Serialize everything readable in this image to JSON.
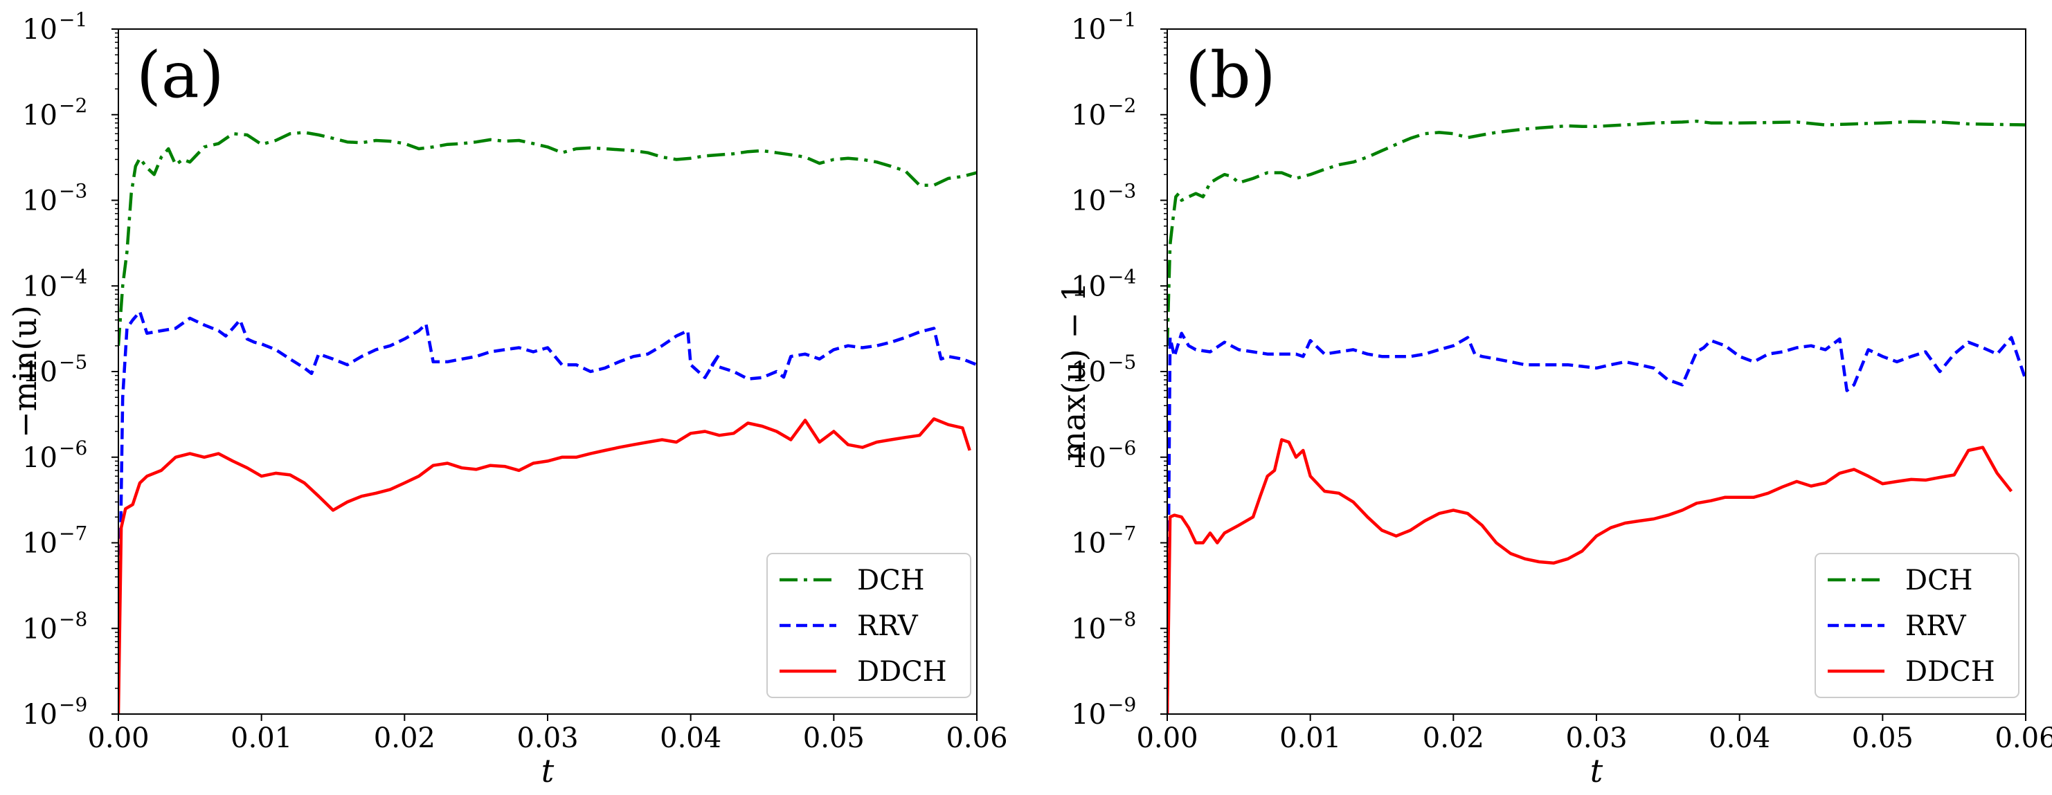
{
  "chart_data": [
    {
      "type": "line",
      "panel_label": "(a)",
      "xlabel": "t",
      "ylabel": "−min(u)",
      "xlim": [
        0.0,
        0.06
      ],
      "ylim": [
        1e-09,
        0.1
      ],
      "yscale": "log",
      "x_ticks": [
        "0.00",
        "0.01",
        "0.02",
        "0.03",
        "0.04",
        "0.05",
        "0.06"
      ],
      "y_ticks": [
        {
          "base": "10",
          "exp": "−9"
        },
        {
          "base": "10",
          "exp": "−8"
        },
        {
          "base": "10",
          "exp": "−7"
        },
        {
          "base": "10",
          "exp": "−6"
        },
        {
          "base": "10",
          "exp": "−5"
        },
        {
          "base": "10",
          "exp": "−4"
        },
        {
          "base": "10",
          "exp": "−3"
        },
        {
          "base": "10",
          "exp": "−2"
        },
        {
          "base": "10",
          "exp": "−1"
        }
      ],
      "legend_position": "lower-right",
      "series": [
        {
          "name": "DCH",
          "color": "#008000",
          "style": "dashdot",
          "x": [
            0.0,
            0.0003,
            0.0006,
            0.0009,
            0.0012,
            0.0015,
            0.002,
            0.0025,
            0.003,
            0.0035,
            0.004,
            0.0045,
            0.005,
            0.006,
            0.007,
            0.008,
            0.009,
            0.01,
            0.011,
            0.012,
            0.013,
            0.014,
            0.015,
            0.016,
            0.017,
            0.018,
            0.019,
            0.02,
            0.021,
            0.022,
            0.023,
            0.024,
            0.025,
            0.026,
            0.027,
            0.028,
            0.029,
            0.03,
            0.031,
            0.032,
            0.033,
            0.034,
            0.035,
            0.036,
            0.037,
            0.038,
            0.039,
            0.04,
            0.041,
            0.042,
            0.043,
            0.044,
            0.045,
            0.046,
            0.047,
            0.048,
            0.049,
            0.05,
            0.051,
            0.052,
            0.053,
            0.054,
            0.055,
            0.056,
            0.057,
            0.058,
            0.059,
            0.06
          ],
          "y": [
            2e-05,
            0.0001,
            0.00025,
            0.0012,
            0.0025,
            0.0031,
            0.0024,
            0.002,
            0.0032,
            0.004,
            0.0026,
            0.003,
            0.0028,
            0.0042,
            0.0046,
            0.006,
            0.0058,
            0.0045,
            0.005,
            0.006,
            0.0062,
            0.0058,
            0.0053,
            0.0048,
            0.0047,
            0.005,
            0.0049,
            0.0046,
            0.004,
            0.0042,
            0.0045,
            0.0046,
            0.0048,
            0.0051,
            0.0049,
            0.005,
            0.0046,
            0.0042,
            0.0036,
            0.004,
            0.0041,
            0.004,
            0.0039,
            0.0038,
            0.0036,
            0.0032,
            0.003,
            0.0031,
            0.0033,
            0.0034,
            0.0035,
            0.0037,
            0.0038,
            0.0036,
            0.0034,
            0.0032,
            0.0027,
            0.003,
            0.0031,
            0.003,
            0.0028,
            0.0025,
            0.0022,
            0.0015,
            0.0015,
            0.0018,
            0.0019,
            0.0021
          ]
        },
        {
          "name": "RRV",
          "color": "#0000ff",
          "style": "dashed",
          "x": [
            0.0,
            0.0003,
            0.0006,
            0.001,
            0.0015,
            0.002,
            0.003,
            0.004,
            0.005,
            0.006,
            0.007,
            0.0075,
            0.008,
            0.0085,
            0.009,
            0.0095,
            0.01,
            0.011,
            0.012,
            0.013,
            0.0135,
            0.014,
            0.0145,
            0.015,
            0.016,
            0.017,
            0.018,
            0.019,
            0.02,
            0.021,
            0.0215,
            0.022,
            0.023,
            0.024,
            0.025,
            0.026,
            0.027,
            0.028,
            0.029,
            0.03,
            0.031,
            0.032,
            0.033,
            0.034,
            0.035,
            0.036,
            0.037,
            0.038,
            0.039,
            0.0398,
            0.04,
            0.041,
            0.042,
            0.0415,
            0.043,
            0.044,
            0.045,
            0.046,
            0.0465,
            0.047,
            0.048,
            0.049,
            0.05,
            0.051,
            0.052,
            0.053,
            0.054,
            0.055,
            0.056,
            0.057,
            0.0575,
            0.058,
            0.059,
            0.06
          ],
          "y": [
            2e-09,
            5e-06,
            3.2e-05,
            4e-05,
            5e-05,
            2.8e-05,
            3e-05,
            3.2e-05,
            4.2e-05,
            3.5e-05,
            3e-05,
            2.6e-05,
            3.2e-05,
            4e-05,
            2.4e-05,
            2.2e-05,
            2.1e-05,
            1.8e-05,
            1.4e-05,
            1.1e-05,
            9.5e-06,
            1.6e-05,
            1.5e-05,
            1.4e-05,
            1.2e-05,
            1.5e-05,
            1.8e-05,
            2e-05,
            2.4e-05,
            3e-05,
            3.6e-05,
            1.3e-05,
            1.3e-05,
            1.4e-05,
            1.5e-05,
            1.7e-05,
            1.8e-05,
            1.9e-05,
            1.7e-05,
            1.9e-05,
            1.2e-05,
            1.2e-05,
            1e-05,
            1.1e-05,
            1.3e-05,
            1.5e-05,
            1.6e-05,
            2e-05,
            2.6e-05,
            3e-05,
            1.2e-05,
            8.5e-06,
            1.6e-05,
            1.2e-05,
            1e-05,
            8.2e-06,
            8.5e-06,
            1e-05,
            8.6e-06,
            1.5e-05,
            1.6e-05,
            1.4e-05,
            1.8e-05,
            2e-05,
            1.9e-05,
            2e-05,
            2.2e-05,
            2.5e-05,
            2.9e-05,
            3.2e-05,
            1.4e-05,
            1.5e-05,
            1.4e-05,
            1.2e-05
          ]
        },
        {
          "name": "DDCH",
          "color": "#ff0000",
          "style": "solid",
          "x": [
            0.0,
            0.0002,
            0.0005,
            0.001,
            0.0015,
            0.002,
            0.003,
            0.004,
            0.005,
            0.006,
            0.007,
            0.008,
            0.009,
            0.01,
            0.011,
            0.012,
            0.013,
            0.014,
            0.015,
            0.016,
            0.017,
            0.018,
            0.019,
            0.02,
            0.021,
            0.022,
            0.023,
            0.024,
            0.025,
            0.026,
            0.027,
            0.028,
            0.029,
            0.03,
            0.031,
            0.032,
            0.033,
            0.034,
            0.035,
            0.036,
            0.037,
            0.038,
            0.039,
            0.04,
            0.041,
            0.042,
            0.043,
            0.044,
            0.045,
            0.046,
            0.047,
            0.048,
            0.049,
            0.05,
            0.051,
            0.052,
            0.053,
            0.054,
            0.055,
            0.056,
            0.057,
            0.058,
            0.059,
            0.0595
          ],
          "y": [
            1e-09,
            1.5e-07,
            2.5e-07,
            2.8e-07,
            5e-07,
            6e-07,
            7e-07,
            1e-06,
            1.1e-06,
            1e-06,
            1.1e-06,
            9e-07,
            7.5e-07,
            6e-07,
            6.5e-07,
            6.2e-07,
            5e-07,
            3.5e-07,
            2.4e-07,
            3e-07,
            3.5e-07,
            3.8e-07,
            4.2e-07,
            5e-07,
            6e-07,
            8e-07,
            8.5e-07,
            7.5e-07,
            7.2e-07,
            8e-07,
            7.8e-07,
            7e-07,
            8.5e-07,
            9e-07,
            1e-06,
            1e-06,
            1.1e-06,
            1.2e-06,
            1.3e-06,
            1.4e-06,
            1.5e-06,
            1.6e-06,
            1.5e-06,
            1.9e-06,
            2e-06,
            1.8e-06,
            1.9e-06,
            2.5e-06,
            2.3e-06,
            2e-06,
            1.6e-06,
            2.7e-06,
            1.5e-06,
            2e-06,
            1.4e-06,
            1.3e-06,
            1.5e-06,
            1.6e-06,
            1.7e-06,
            1.8e-06,
            2.8e-06,
            2.4e-06,
            2.2e-06,
            1.2e-06
          ]
        }
      ]
    },
    {
      "type": "line",
      "panel_label": "(b)",
      "xlabel": "t",
      "ylabel": "max(u) − 1",
      "xlim": [
        0.0,
        0.06
      ],
      "ylim": [
        1e-09,
        0.1
      ],
      "yscale": "log",
      "x_ticks": [
        "0.00",
        "0.01",
        "0.02",
        "0.03",
        "0.04",
        "0.05",
        "0.06"
      ],
      "y_ticks": [
        {
          "base": "10",
          "exp": "−9"
        },
        {
          "base": "10",
          "exp": "−8"
        },
        {
          "base": "10",
          "exp": "−7"
        },
        {
          "base": "10",
          "exp": "−6"
        },
        {
          "base": "10",
          "exp": "−5"
        },
        {
          "base": "10",
          "exp": "−4"
        },
        {
          "base": "10",
          "exp": "−3"
        },
        {
          "base": "10",
          "exp": "−2"
        },
        {
          "base": "10",
          "exp": "−1"
        }
      ],
      "legend_position": "lower-right",
      "series": [
        {
          "name": "DCH",
          "color": "#008000",
          "style": "dashdot",
          "x": [
            0.0,
            0.0002,
            0.0004,
            0.0006,
            0.0008,
            0.001,
            0.0015,
            0.002,
            0.0025,
            0.003,
            0.0035,
            0.004,
            0.0045,
            0.005,
            0.006,
            0.007,
            0.008,
            0.009,
            0.01,
            0.011,
            0.012,
            0.013,
            0.014,
            0.015,
            0.016,
            0.017,
            0.018,
            0.019,
            0.02,
            0.021,
            0.022,
            0.023,
            0.024,
            0.025,
            0.026,
            0.027,
            0.028,
            0.029,
            0.03,
            0.032,
            0.034,
            0.036,
            0.037,
            0.038,
            0.04,
            0.042,
            0.044,
            0.046,
            0.048,
            0.05,
            0.052,
            0.054,
            0.056,
            0.058,
            0.06
          ],
          "y": [
            2e-05,
            0.0003,
            0.0006,
            0.0011,
            0.0012,
            0.001,
            0.0011,
            0.0012,
            0.0011,
            0.0016,
            0.0018,
            0.002,
            0.0019,
            0.0016,
            0.0018,
            0.0021,
            0.0021,
            0.0018,
            0.002,
            0.0023,
            0.0026,
            0.0028,
            0.0032,
            0.0038,
            0.0045,
            0.0053,
            0.006,
            0.0062,
            0.006,
            0.0054,
            0.0058,
            0.0062,
            0.0065,
            0.0068,
            0.007,
            0.0072,
            0.0074,
            0.0073,
            0.0073,
            0.0076,
            0.008,
            0.0082,
            0.0084,
            0.008,
            0.008,
            0.0081,
            0.0082,
            0.0076,
            0.0078,
            0.008,
            0.0083,
            0.0082,
            0.0078,
            0.0077,
            0.0076
          ]
        },
        {
          "name": "RRV",
          "color": "#0000ff",
          "style": "dashed",
          "x": [
            0.0,
            0.0002,
            0.0005,
            0.001,
            0.0015,
            0.002,
            0.003,
            0.004,
            0.005,
            0.006,
            0.007,
            0.008,
            0.009,
            0.0095,
            0.01,
            0.011,
            0.012,
            0.013,
            0.014,
            0.015,
            0.016,
            0.017,
            0.018,
            0.019,
            0.02,
            0.021,
            0.0215,
            0.022,
            0.023,
            0.024,
            0.025,
            0.026,
            0.027,
            0.028,
            0.029,
            0.03,
            0.031,
            0.032,
            0.033,
            0.034,
            0.035,
            0.036,
            0.037,
            0.0375,
            0.038,
            0.039,
            0.04,
            0.041,
            0.042,
            0.043,
            0.044,
            0.045,
            0.046,
            0.047,
            0.0475,
            0.048,
            0.049,
            0.05,
            0.051,
            0.052,
            0.053,
            0.054,
            0.055,
            0.056,
            0.057,
            0.058,
            0.059,
            0.06
          ],
          "y": [
            1e-09,
            2.5e-05,
            1.5e-05,
            2.8e-05,
            2e-05,
            1.8e-05,
            1.7e-05,
            2.2e-05,
            1.8e-05,
            1.7e-05,
            1.6e-05,
            1.6e-05,
            1.6e-05,
            1.5e-05,
            2.3e-05,
            1.6e-05,
            1.7e-05,
            1.8e-05,
            1.6e-05,
            1.5e-05,
            1.5e-05,
            1.5e-05,
            1.6e-05,
            1.8e-05,
            2e-05,
            2.5e-05,
            1.6e-05,
            1.5e-05,
            1.4e-05,
            1.3e-05,
            1.2e-05,
            1.2e-05,
            1.2e-05,
            1.2e-05,
            1.15e-05,
            1.1e-05,
            1.2e-05,
            1.3e-05,
            1.2e-05,
            1.1e-05,
            8e-06,
            7e-06,
            1.7e-05,
            1.9e-05,
            2.3e-05,
            2e-05,
            1.5e-05,
            1.3e-05,
            1.6e-05,
            1.7e-05,
            1.9e-05,
            2e-05,
            1.8e-05,
            2.4e-05,
            6e-06,
            7e-06,
            1.8e-05,
            1.5e-05,
            1.3e-05,
            1.5e-05,
            1.7e-05,
            1e-05,
            1.6e-05,
            2.2e-05,
            1.9e-05,
            1.6e-05,
            2.5e-05,
            8e-06
          ]
        },
        {
          "name": "DDCH",
          "color": "#ff0000",
          "style": "solid",
          "x": [
            0.0,
            0.0002,
            0.0005,
            0.001,
            0.0015,
            0.002,
            0.0025,
            0.003,
            0.0035,
            0.004,
            0.005,
            0.006,
            0.0065,
            0.007,
            0.0075,
            0.008,
            0.0085,
            0.009,
            0.0095,
            0.01,
            0.011,
            0.012,
            0.013,
            0.014,
            0.015,
            0.016,
            0.017,
            0.018,
            0.019,
            0.02,
            0.021,
            0.022,
            0.023,
            0.024,
            0.025,
            0.026,
            0.027,
            0.028,
            0.029,
            0.03,
            0.031,
            0.032,
            0.033,
            0.034,
            0.035,
            0.036,
            0.037,
            0.038,
            0.039,
            0.04,
            0.041,
            0.042,
            0.043,
            0.044,
            0.045,
            0.046,
            0.047,
            0.048,
            0.049,
            0.05,
            0.051,
            0.052,
            0.053,
            0.054,
            0.055,
            0.056,
            0.057,
            0.058,
            0.059
          ],
          "y": [
            1e-09,
            2e-07,
            2.1e-07,
            2e-07,
            1.5e-07,
            1e-07,
            1e-07,
            1.3e-07,
            1e-07,
            1.3e-07,
            1.6e-07,
            2e-07,
            3.5e-07,
            6e-07,
            7e-07,
            1.6e-06,
            1.5e-06,
            1e-06,
            1.2e-06,
            6e-07,
            4e-07,
            3.8e-07,
            3e-07,
            2e-07,
            1.4e-07,
            1.2e-07,
            1.4e-07,
            1.8e-07,
            2.2e-07,
            2.4e-07,
            2.2e-07,
            1.6e-07,
            1e-07,
            7.5e-08,
            6.5e-08,
            6e-08,
            5.8e-08,
            6.5e-08,
            8e-08,
            1.2e-07,
            1.5e-07,
            1.7e-07,
            1.8e-07,
            1.9e-07,
            2.1e-07,
            2.4e-07,
            2.9e-07,
            3.1e-07,
            3.4e-07,
            3.4e-07,
            3.4e-07,
            3.8e-07,
            4.5e-07,
            5.2e-07,
            4.6e-07,
            5e-07,
            6.5e-07,
            7.2e-07,
            6e-07,
            4.9e-07,
            5.2e-07,
            5.5e-07,
            5.4e-07,
            5.8e-07,
            6.2e-07,
            1.2e-06,
            1.3e-06,
            6.5e-07,
            4e-07
          ]
        }
      ]
    }
  ]
}
